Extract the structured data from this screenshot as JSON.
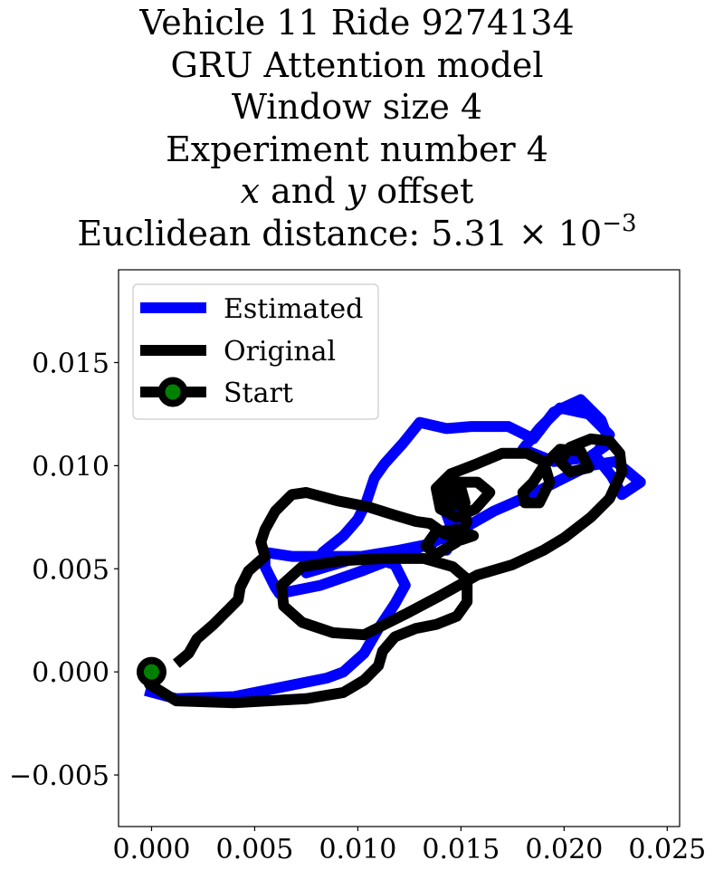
{
  "chart_data": {
    "type": "line",
    "title_lines": {
      "line1": "Vehicle 11 Ride 9274134",
      "line2": "GRU Attention model",
      "line3": "Window size 4",
      "line4": "Experiment number 4",
      "line5_var_x": "x",
      "line5_and": " and ",
      "line5_var_y": "y",
      "line5_rest": " offset",
      "line6_prefix": "Euclidean distance: 5.31 × 10",
      "line6_exp": "−3"
    },
    "xlim": [
      -0.0016,
      0.0256
    ],
    "ylim": [
      -0.0075,
      0.0195
    ],
    "x_ticks": [
      0.0,
      0.005,
      0.01,
      0.015,
      0.02,
      0.025
    ],
    "x_tick_labels": [
      "0.000",
      "0.005",
      "0.010",
      "0.015",
      "0.020",
      "0.025"
    ],
    "y_ticks": [
      -0.005,
      0.0,
      0.005,
      0.01,
      0.015
    ],
    "y_tick_labels": [
      "−0.005",
      "0.000",
      "0.005",
      "0.010",
      "0.015"
    ],
    "legend": {
      "placement": "upper-left",
      "entries": [
        "Estimated",
        "Original",
        "Start"
      ]
    },
    "colors": {
      "estimated": "#0000ff",
      "original": "#000000",
      "start_face": "#008000",
      "start_edge": "#000000"
    },
    "series": [
      {
        "name": "Estimated",
        "points": [
          [
            -0.0003,
            -0.0009
          ],
          [
            0.0012,
            -0.0013
          ],
          [
            0.004,
            -0.0012
          ],
          [
            0.0065,
            -0.0007
          ],
          [
            0.0085,
            -0.0003
          ],
          [
            0.0093,
            0.0
          ],
          [
            0.0103,
            0.0009
          ],
          [
            0.011,
            0.0021
          ],
          [
            0.0118,
            0.0033
          ],
          [
            0.0123,
            0.0042
          ],
          [
            0.0118,
            0.0052
          ],
          [
            0.0105,
            0.0056
          ],
          [
            0.0088,
            0.0056
          ],
          [
            0.0068,
            0.0056
          ],
          [
            0.0055,
            0.0058
          ],
          [
            0.0055,
            0.0051
          ],
          [
            0.006,
            0.0041
          ],
          [
            0.0062,
            0.0038
          ],
          [
            0.0082,
            0.0042
          ],
          [
            0.0102,
            0.0049
          ],
          [
            0.012,
            0.0056
          ],
          [
            0.0136,
            0.0063
          ],
          [
            0.0152,
            0.007
          ],
          [
            0.0166,
            0.0078
          ],
          [
            0.0182,
            0.0085
          ],
          [
            0.0198,
            0.0093
          ],
          [
            0.0212,
            0.01
          ],
          [
            0.0225,
            0.0102
          ],
          [
            0.0237,
            0.0092
          ],
          [
            0.0228,
            0.0086
          ],
          [
            0.0223,
            0.0095
          ],
          [
            0.0215,
            0.0105
          ],
          [
            0.0222,
            0.0115
          ],
          [
            0.0212,
            0.0125
          ],
          [
            0.0198,
            0.0128
          ],
          [
            0.0188,
            0.0118
          ],
          [
            0.018,
            0.0108
          ],
          [
            0.0195,
            0.0102
          ],
          [
            0.0212,
            0.0104
          ],
          [
            0.0222,
            0.0111
          ],
          [
            0.0218,
            0.0122
          ],
          [
            0.0208,
            0.0132
          ],
          [
            0.0195,
            0.0126
          ],
          [
            0.0185,
            0.0113
          ],
          [
            0.0173,
            0.0119
          ],
          [
            0.0155,
            0.0119
          ],
          [
            0.0143,
            0.0118
          ],
          [
            0.013,
            0.0121
          ],
          [
            0.0122,
            0.0111
          ],
          [
            0.0113,
            0.0101
          ],
          [
            0.0108,
            0.0094
          ],
          [
            0.0104,
            0.0082
          ],
          [
            0.01,
            0.0074
          ],
          [
            0.0093,
            0.0066
          ],
          [
            0.0083,
            0.0058
          ],
          [
            0.0075,
            0.0048
          ],
          [
            0.0085,
            0.0051
          ],
          [
            0.0102,
            0.0056
          ],
          [
            0.012,
            0.0059
          ],
          [
            0.0135,
            0.0062
          ],
          [
            0.0143,
            0.0066
          ],
          [
            0.0148,
            0.0073
          ],
          [
            0.0145,
            0.0067
          ],
          [
            0.0143,
            0.0059
          ],
          [
            0.0148,
            0.0069
          ],
          [
            0.0146,
            0.0079
          ],
          [
            0.0149,
            0.0088
          ],
          [
            0.0143,
            0.0091
          ],
          [
            0.0141,
            0.0082
          ],
          [
            0.0145,
            0.0071
          ]
        ]
      },
      {
        "name": "Original",
        "points": [
          [
            0.0,
            0.0
          ],
          [
            -0.0001,
            -0.0006
          ],
          [
            0.0012,
            -0.0014
          ],
          [
            0.004,
            -0.0015
          ],
          [
            0.0075,
            -0.0013
          ],
          [
            0.0093,
            -0.001
          ],
          [
            0.0103,
            -0.0004
          ],
          [
            0.011,
            0.0003
          ],
          [
            0.0112,
            0.001
          ],
          [
            0.0118,
            0.0017
          ],
          [
            0.0128,
            0.0021
          ],
          [
            0.0138,
            0.0023
          ],
          [
            0.0148,
            0.0027
          ],
          [
            0.0153,
            0.0034
          ],
          [
            0.0153,
            0.0045
          ],
          [
            0.0146,
            0.0051
          ],
          [
            0.0132,
            0.0055
          ],
          [
            0.0113,
            0.0055
          ],
          [
            0.0093,
            0.0054
          ],
          [
            0.0073,
            0.0051
          ],
          [
            0.0063,
            0.0042
          ],
          [
            0.0064,
            0.0032
          ],
          [
            0.0073,
            0.0024
          ],
          [
            0.0088,
            0.0019
          ],
          [
            0.0103,
            0.0018
          ],
          [
            0.0113,
            0.0023
          ],
          [
            0.0123,
            0.0028
          ],
          [
            0.014,
            0.0037
          ],
          [
            0.0158,
            0.0047
          ],
          [
            0.0175,
            0.0052
          ],
          [
            0.019,
            0.0059
          ],
          [
            0.02,
            0.0065
          ],
          [
            0.0213,
            0.0075
          ],
          [
            0.0222,
            0.0084
          ],
          [
            0.0228,
            0.0097
          ],
          [
            0.0227,
            0.0106
          ],
          [
            0.0222,
            0.0112
          ],
          [
            0.0213,
            0.0113
          ],
          [
            0.0203,
            0.0109
          ],
          [
            0.0198,
            0.0102
          ],
          [
            0.0203,
            0.0097
          ],
          [
            0.0212,
            0.0099
          ],
          [
            0.0208,
            0.0107
          ],
          [
            0.0198,
            0.0108
          ],
          [
            0.0191,
            0.0101
          ],
          [
            0.0185,
            0.0092
          ],
          [
            0.018,
            0.0087
          ],
          [
            0.0181,
            0.0082
          ],
          [
            0.0188,
            0.0082
          ],
          [
            0.0193,
            0.0092
          ],
          [
            0.019,
            0.0102
          ],
          [
            0.0182,
            0.0106
          ],
          [
            0.017,
            0.0106
          ],
          [
            0.0158,
            0.0101
          ],
          [
            0.0145,
            0.0096
          ],
          [
            0.0138,
            0.0089
          ],
          [
            0.014,
            0.0079
          ],
          [
            0.0148,
            0.0075
          ],
          [
            0.0157,
            0.0079
          ],
          [
            0.0164,
            0.0087
          ],
          [
            0.0158,
            0.0092
          ],
          [
            0.0148,
            0.0092
          ],
          [
            0.0143,
            0.0086
          ],
          [
            0.0145,
            0.0081
          ],
          [
            0.0152,
            0.0082
          ],
          [
            0.015,
            0.0089
          ],
          [
            0.0143,
            0.0088
          ],
          [
            0.0149,
            0.0083
          ],
          [
            0.0153,
            0.0073
          ],
          [
            0.0148,
            0.0063
          ],
          [
            0.0138,
            0.0057
          ],
          [
            0.0133,
            0.0061
          ],
          [
            0.0138,
            0.0068
          ],
          [
            0.0148,
            0.0069
          ],
          [
            0.0156,
            0.0066
          ],
          [
            0.015,
            0.0064
          ],
          [
            0.0142,
            0.0067
          ],
          [
            0.0135,
            0.0072
          ],
          [
            0.0128,
            0.0073
          ],
          [
            0.0118,
            0.0076
          ],
          [
            0.0105,
            0.008
          ],
          [
            0.009,
            0.0083
          ],
          [
            0.0075,
            0.0087
          ],
          [
            0.0068,
            0.0086
          ],
          [
            0.006,
            0.0078
          ],
          [
            0.0055,
            0.0069
          ],
          [
            0.0053,
            0.0063
          ],
          [
            0.0055,
            0.0056
          ],
          [
            0.0047,
            0.0049
          ],
          [
            0.0043,
            0.0041
          ],
          [
            0.0042,
            0.0035
          ],
          [
            0.0038,
            0.0031
          ],
          [
            0.003,
            0.0023
          ],
          [
            0.0022,
            0.0016
          ],
          [
            0.0018,
            0.0009
          ],
          [
            0.0012,
            0.0004
          ]
        ]
      }
    ],
    "start_point": [
      0.0,
      0.0
    ]
  }
}
